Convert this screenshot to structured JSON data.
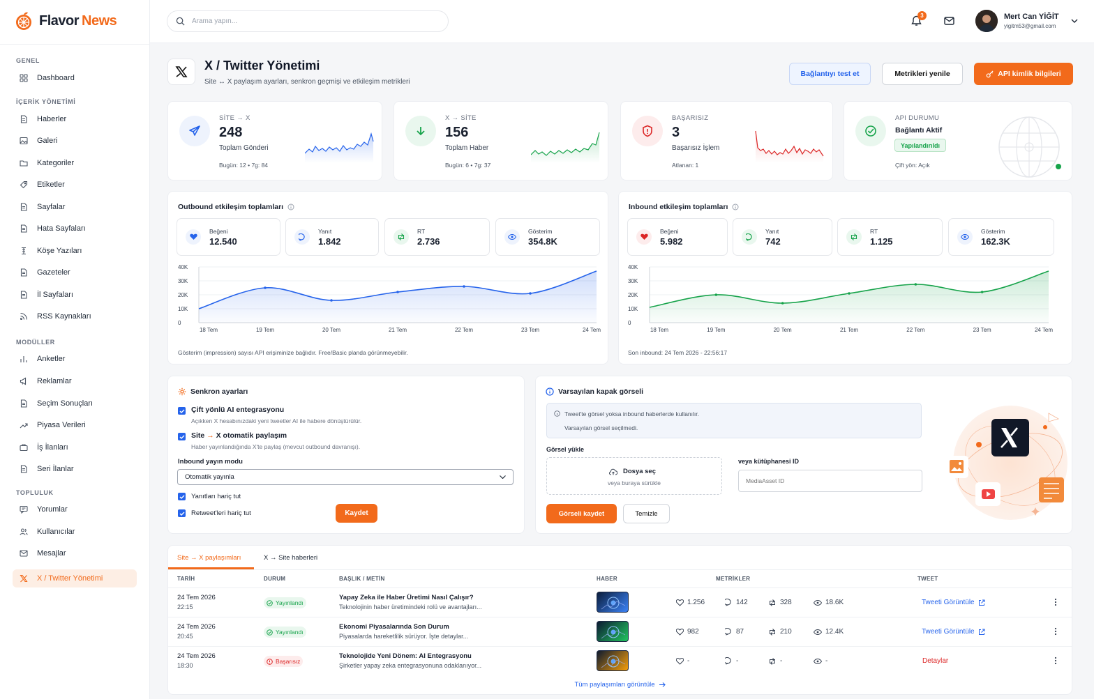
{
  "brand": {
    "name_part1": "Flavor",
    "name_part2": "News"
  },
  "sidebar": {
    "sections": [
      "GENEL",
      "İÇERİK YÖNETİMİ",
      "MODÜLLER",
      "TOPLULUK"
    ],
    "items": [
      {
        "label": "Dashboard",
        "icon": "dashboard-icon"
      },
      {
        "label": "Haberler",
        "icon": "news-icon"
      },
      {
        "label": "Galeri",
        "icon": "gallery-icon"
      },
      {
        "label": "Kategoriler",
        "icon": "folder-icon"
      },
      {
        "label": "Etiketler",
        "icon": "tag-icon"
      },
      {
        "label": "Sayfalar",
        "icon": "page-icon"
      },
      {
        "label": "Hata Sayfaları",
        "icon": "error-page-icon"
      },
      {
        "label": "Köşe Yazıları",
        "icon": "column-icon"
      },
      {
        "label": "Gazeteler",
        "icon": "newspaper-icon"
      },
      {
        "label": "İl Sayfaları",
        "icon": "city-page-icon"
      },
      {
        "label": "RSS Kaynakları",
        "icon": "rss-icon"
      },
      {
        "label": "Anketler",
        "icon": "poll-icon"
      },
      {
        "label": "Reklamlar",
        "icon": "megaphone-icon"
      },
      {
        "label": "Seçim Sonuçları",
        "icon": "ballot-icon"
      },
      {
        "label": "Piyasa Verileri",
        "icon": "trend-icon"
      },
      {
        "label": "İş İlanları",
        "icon": "briefcase-icon"
      },
      {
        "label": "Seri İlanlar",
        "icon": "classified-icon"
      },
      {
        "label": "Yorumlar",
        "icon": "comment-icon"
      },
      {
        "label": "Kullanıcılar",
        "icon": "users-icon"
      },
      {
        "label": "Mesajlar",
        "icon": "mail-icon"
      },
      {
        "label": "X / Twitter Yönetimi",
        "icon": "x-icon"
      }
    ]
  },
  "topbar": {
    "search_placeholder": "Arama yapın...",
    "notif_count": "3",
    "user_name": "Mert Can YİĞİT",
    "user_email": "yigitm53@gmail.com"
  },
  "header": {
    "title": "X / Twitter Yönetimi",
    "subtitle": "Site ↔ X paylaşım ayarları, senkron geçmişi ve etkileşim metrikleri",
    "btn_test": "Bağlantıyı test et",
    "btn_refresh": "Metrikleri yenile",
    "btn_api": "API kimlik bilgileri"
  },
  "stats": [
    {
      "kicker": "SİTE → X",
      "value": "248",
      "label": "Toplam Gönderi",
      "sub": "Bugün: 12  •  7g: 84",
      "color": "#2563eb"
    },
    {
      "kicker": "X → SİTE",
      "value": "156",
      "label": "Toplam Haber",
      "sub": "Bugün: 6  •  7g: 37",
      "color": "#16a34a"
    },
    {
      "kicker": "BAŞARISIZ",
      "value": "3",
      "label": "Başarısız İşlem",
      "sub": "Atlanan: 1",
      "color": "#dc2626"
    },
    {
      "kicker": "API DURUMU",
      "value": "Bağlantı Aktif",
      "badge": "Yapılandırıldı",
      "sub": "Çift yön: Açık",
      "color": "#16a34a"
    }
  ],
  "outbound": {
    "title": "Outbound etkileşim toplamları",
    "metrics": [
      {
        "label": "Beğeni",
        "value": "12.540"
      },
      {
        "label": "Yanıt",
        "value": "1.842"
      },
      {
        "label": "RT",
        "value": "2.736"
      },
      {
        "label": "Gösterim",
        "value": "354.8K"
      }
    ],
    "note": "Gösterim (impression) sayısı API erişiminize bağlıdır. Free/Basic planda görünmeyebilir."
  },
  "inbound": {
    "title": "Inbound etkileşim toplamları",
    "metrics": [
      {
        "label": "Beğeni",
        "value": "5.982"
      },
      {
        "label": "Yanıt",
        "value": "742"
      },
      {
        "label": "RT",
        "value": "1.125"
      },
      {
        "label": "Gösterim",
        "value": "162.3K"
      }
    ],
    "note": "Son inbound: 24 Tem 2026 - 22:56:17"
  },
  "chart_data": [
    {
      "type": "area",
      "x": [
        "18 Tem",
        "19 Tem",
        "20 Tem",
        "21 Tem",
        "22 Tem",
        "23 Tem",
        "24 Tem"
      ],
      "y_ticks": [
        "40K",
        "30K",
        "20K",
        "10K",
        "0"
      ],
      "ylim": [
        0,
        40000
      ],
      "series": [
        {
          "values": [
            10000,
            25000,
            16000,
            22000,
            26000,
            21000,
            37000
          ],
          "color": "#2563eb"
        }
      ]
    },
    {
      "type": "area",
      "x": [
        "18 Tem",
        "19 Tem",
        "20 Tem",
        "21 Tem",
        "22 Tem",
        "23 Tem",
        "24 Tem"
      ],
      "y_ticks": [
        "40K",
        "30K",
        "20K",
        "10K",
        "0"
      ],
      "ylim": [
        0,
        40000
      ],
      "series": [
        {
          "values": [
            11000,
            20000,
            14000,
            21000,
            27500,
            22000,
            37000
          ],
          "color": "#16a34a"
        }
      ]
    }
  ],
  "sync": {
    "title": "Senkron ayarları",
    "opt1_title": "Çift yönlü AI entegrasyonu",
    "opt1_desc": "Açıkken X hesabınızdaki yeni tweetler AI ile habere dönüştürülür.",
    "opt2_title_a": "Site",
    "opt2_arrow": "→",
    "opt2_title_b": "X otomatik paylaşım",
    "opt2_desc": "Haber yayınlandığında X'te paylaş (mevcut outbound davranışı).",
    "mode_label": "Inbound yayın modu",
    "mode_value": "Otomatik yayınla",
    "exclude_replies": "Yanıtları hariç tut",
    "exclude_rts": "Retweet'leri hariç tut",
    "save": "Kaydet"
  },
  "cover": {
    "title": "Varsayılan kapak görseli",
    "info1": "Tweet'te görsel yoksa inbound haberlerde kullanılır.",
    "info2": "Varsayılan görsel seçilmedi.",
    "upload_label": "Görsel yükle",
    "choose_file": "Dosya seç",
    "drop_hint": "veya buraya sürükle",
    "library_label": "veya kütüphanesi ID",
    "library_placeholder": "MediaAsset ID",
    "save": "Görseli kaydet",
    "clear": "Temizle"
  },
  "table": {
    "tabs": [
      "Site → X paylaşımları",
      "X → Site haberleri"
    ],
    "columns": [
      "TARİH",
      "DURUM",
      "BAŞLIK / METİN",
      "HABER",
      "METRİKLER",
      "TWEET"
    ],
    "rows": [
      {
        "date": "24 Tem 2026",
        "time": "22:15",
        "status": "Yayınlandı",
        "status_type": "ok",
        "title": "Yapay Zeka ile Haber Üretimi Nasıl Çalışır?",
        "desc": "Teknolojinin haber üretimindeki rolü ve avantajları...",
        "likes": "1.256",
        "replies": "142",
        "rts": "328",
        "views": "18.6K",
        "link": "Tweeti Görüntüle"
      },
      {
        "date": "24 Tem 2026",
        "time": "20:45",
        "status": "Yayınlandı",
        "status_type": "ok",
        "title": "Ekonomi Piyasalarında Son Durum",
        "desc": "Piyasalarda hareketlilik sürüyor. İşte detaylar...",
        "likes": "982",
        "replies": "87",
        "rts": "210",
        "views": "12.4K",
        "link": "Tweeti Görüntüle"
      },
      {
        "date": "24 Tem 2026",
        "time": "18:30",
        "status": "Başarısız",
        "status_type": "fail",
        "title": "Teknolojide Yeni Dönem: AI Entegrasyonu",
        "desc": "Şirketler yapay zeka entegrasyonuna odaklanıyor...",
        "likes": "-",
        "replies": "-",
        "rts": "-",
        "views": "-",
        "link": "Detaylar"
      }
    ],
    "view_all": "Tüm paylaşımları görüntüle"
  }
}
